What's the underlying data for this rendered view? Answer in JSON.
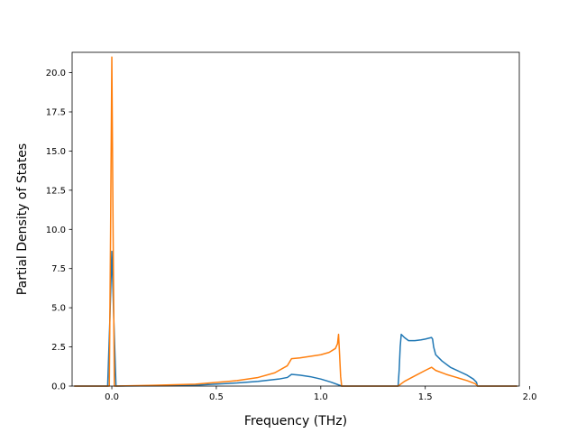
{
  "chart_data": {
    "type": "line",
    "title": "",
    "xlabel": "Frequency (THz)",
    "ylabel": "Partial Density of States",
    "xlim": [
      -0.19,
      1.95
    ],
    "ylim": [
      0.0,
      21.3
    ],
    "xticks": [
      0.0,
      0.5,
      1.0,
      1.5,
      2.0
    ],
    "xtick_labels": [
      "0.0",
      "0.5",
      "1.0",
      "1.5",
      "2.0"
    ],
    "yticks": [
      0.0,
      2.5,
      5.0,
      7.5,
      10.0,
      12.5,
      15.0,
      17.5,
      20.0
    ],
    "ytick_labels": [
      "0.0",
      "2.5",
      "5.0",
      "7.5",
      "10.0",
      "12.5",
      "15.0",
      "17.5",
      "20.0"
    ],
    "grid": false,
    "legend": "none",
    "series": [
      {
        "color": "#1f77b4",
        "x": [
          -0.18,
          -0.02,
          -0.01,
          0.0,
          0.01,
          0.02,
          0.2,
          0.4,
          0.6,
          0.7,
          0.8,
          0.84,
          0.86,
          0.9,
          0.95,
          1.0,
          1.05,
          1.08,
          1.1,
          1.37,
          1.375,
          1.38,
          1.385,
          1.4,
          1.42,
          1.45,
          1.48,
          1.5,
          1.53,
          1.535,
          1.54,
          1.55,
          1.58,
          1.62,
          1.66,
          1.7,
          1.73,
          1.745,
          1.75,
          1.94
        ],
        "y": [
          0.0,
          0.0,
          4.0,
          8.6,
          4.0,
          0.0,
          0.02,
          0.06,
          0.2,
          0.3,
          0.45,
          0.55,
          0.75,
          0.7,
          0.6,
          0.45,
          0.25,
          0.1,
          0.0,
          0.0,
          1.0,
          2.5,
          3.3,
          3.1,
          2.9,
          2.9,
          2.95,
          3.0,
          3.1,
          3.0,
          2.5,
          2.0,
          1.6,
          1.2,
          0.95,
          0.7,
          0.45,
          0.25,
          0.0,
          0.0
        ]
      },
      {
        "color": "#ff7f0e",
        "x": [
          -0.18,
          -0.012,
          -0.006,
          0.0,
          0.006,
          0.012,
          0.2,
          0.4,
          0.6,
          0.7,
          0.78,
          0.84,
          0.86,
          0.9,
          0.95,
          1.0,
          1.04,
          1.07,
          1.08,
          1.085,
          1.09,
          1.095,
          1.1,
          1.37,
          1.4,
          1.45,
          1.5,
          1.53,
          1.55,
          1.6,
          1.65,
          1.7,
          1.74,
          1.75,
          1.94
        ],
        "y": [
          0.0,
          0.0,
          10.0,
          21.0,
          10.0,
          0.0,
          0.05,
          0.12,
          0.35,
          0.55,
          0.85,
          1.3,
          1.75,
          1.8,
          1.9,
          2.0,
          2.15,
          2.4,
          2.7,
          3.3,
          2.0,
          0.6,
          0.0,
          0.0,
          0.3,
          0.65,
          1.0,
          1.2,
          1.0,
          0.75,
          0.55,
          0.35,
          0.15,
          0.0,
          0.0
        ]
      }
    ]
  }
}
